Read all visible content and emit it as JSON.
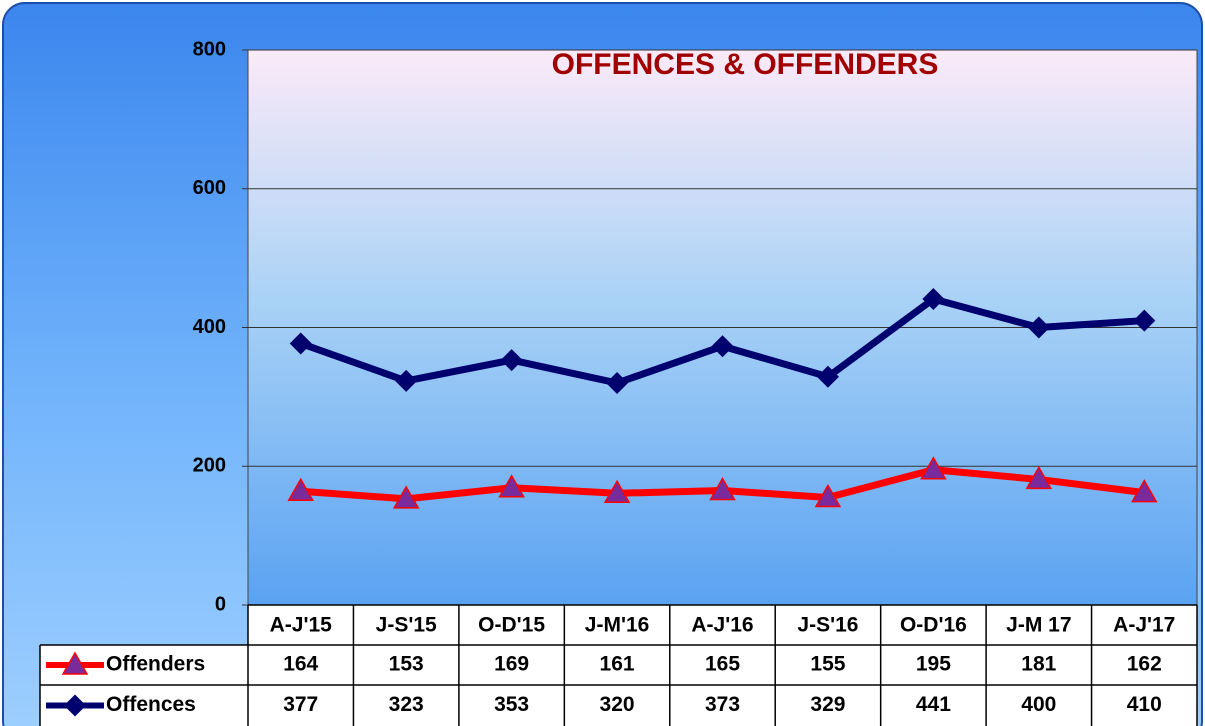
{
  "chart_data": {
    "type": "line",
    "title": "OFFENCES & OFFENDERS",
    "title_color": "#a00000",
    "categories": [
      "A-J'15",
      "J-S'15",
      "O-D'15",
      "J-M'16",
      "A-J'16",
      "J-S'16",
      "O-D'16",
      "J-M 17",
      "A-J'17"
    ],
    "series": [
      {
        "name": "Offenders",
        "color": "#ff0000",
        "marker": "triangle",
        "marker_color": "#7a2a9a",
        "values": [
          164,
          153,
          169,
          161,
          165,
          155,
          195,
          181,
          162
        ]
      },
      {
        "name": "Offences",
        "color": "#00006e",
        "marker": "diamond",
        "marker_color": "#00006e",
        "values": [
          377,
          323,
          353,
          320,
          373,
          329,
          441,
          400,
          410
        ]
      }
    ],
    "ylim": [
      0,
      800
    ],
    "yticks": [
      0,
      200,
      400,
      600,
      800
    ],
    "grid": true
  }
}
